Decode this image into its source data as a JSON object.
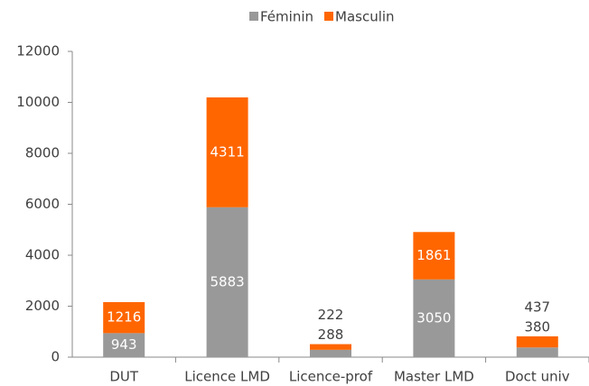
{
  "chart_data": {
    "type": "stacked_bar",
    "categories": [
      "DUT",
      "Licence LMD",
      "Licence-prof",
      "Master LMD",
      "Doct univ"
    ],
    "series": [
      {
        "name": "Féminin",
        "color": "#999999",
        "values": [
          943,
          5883,
          288,
          3050,
          380
        ]
      },
      {
        "name": "Masculin",
        "color": "#ff6600",
        "values": [
          1216,
          4311,
          222,
          1861,
          437
        ]
      }
    ],
    "ylim": [
      0,
      12000
    ],
    "yticks": [
      0,
      2000,
      4000,
      6000,
      8000,
      10000,
      12000
    ],
    "legend": "top"
  }
}
